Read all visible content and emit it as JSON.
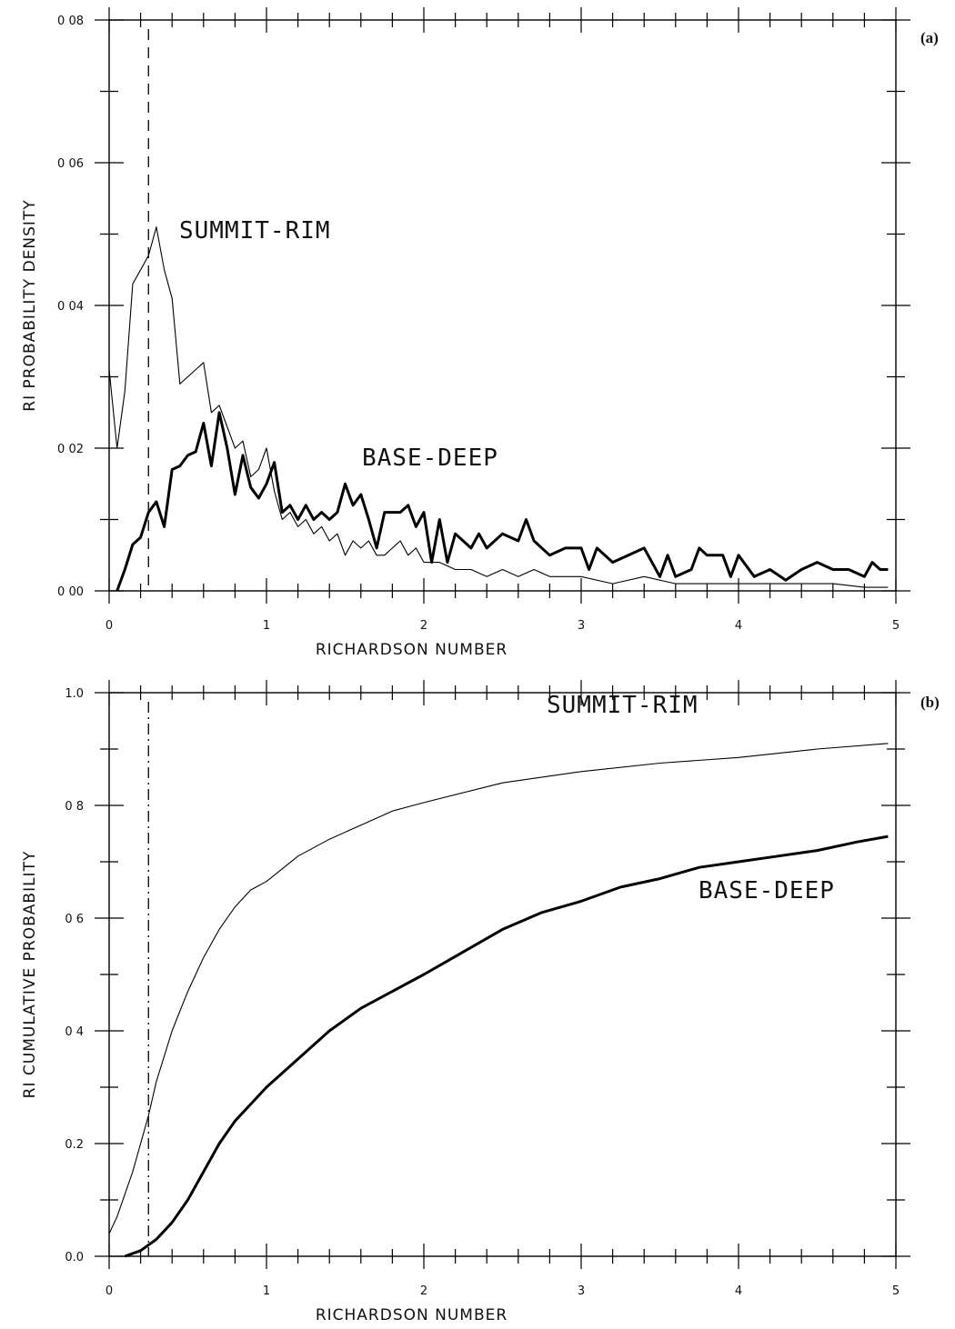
{
  "chart_data": [
    {
      "panel_label": "(a)",
      "type": "line",
      "xlabel": "RICHARDSON NUMBER",
      "ylabel": "RI PROBABILITY DENSITY",
      "xlim": [
        0,
        5
      ],
      "ylim": [
        0,
        0.08
      ],
      "x_ticks": [
        "0",
        "1",
        "2",
        "3",
        "4",
        "5"
      ],
      "y_ticks": [
        "0 00",
        "0 02",
        "0 04",
        "0 06",
        "0 08"
      ],
      "threshold_x": 0.25,
      "series": [
        {
          "name": "SUMMIT-RIM",
          "values": [
            [
              0.0,
              0.031
            ],
            [
              0.05,
              0.02
            ],
            [
              0.1,
              0.028
            ],
            [
              0.15,
              0.043
            ],
            [
              0.2,
              0.045
            ],
            [
              0.25,
              0.047
            ],
            [
              0.3,
              0.051
            ],
            [
              0.35,
              0.045
            ],
            [
              0.4,
              0.041
            ],
            [
              0.45,
              0.029
            ],
            [
              0.5,
              0.03
            ],
            [
              0.55,
              0.031
            ],
            [
              0.6,
              0.032
            ],
            [
              0.65,
              0.025
            ],
            [
              0.7,
              0.026
            ],
            [
              0.75,
              0.023
            ],
            [
              0.8,
              0.02
            ],
            [
              0.85,
              0.021
            ],
            [
              0.9,
              0.016
            ],
            [
              0.95,
              0.017
            ],
            [
              1.0,
              0.02
            ],
            [
              1.05,
              0.014
            ],
            [
              1.1,
              0.01
            ],
            [
              1.15,
              0.011
            ],
            [
              1.2,
              0.009
            ],
            [
              1.25,
              0.01
            ],
            [
              1.3,
              0.008
            ],
            [
              1.35,
              0.009
            ],
            [
              1.4,
              0.007
            ],
            [
              1.45,
              0.008
            ],
            [
              1.5,
              0.005
            ],
            [
              1.55,
              0.007
            ],
            [
              1.6,
              0.006
            ],
            [
              1.65,
              0.007
            ],
            [
              1.7,
              0.005
            ],
            [
              1.75,
              0.005
            ],
            [
              1.8,
              0.006
            ],
            [
              1.85,
              0.007
            ],
            [
              1.9,
              0.005
            ],
            [
              1.95,
              0.006
            ],
            [
              2.0,
              0.004
            ],
            [
              2.1,
              0.004
            ],
            [
              2.2,
              0.003
            ],
            [
              2.3,
              0.003
            ],
            [
              2.4,
              0.002
            ],
            [
              2.5,
              0.003
            ],
            [
              2.6,
              0.002
            ],
            [
              2.7,
              0.003
            ],
            [
              2.8,
              0.002
            ],
            [
              2.9,
              0.002
            ],
            [
              3.0,
              0.002
            ],
            [
              3.2,
              0.001
            ],
            [
              3.4,
              0.002
            ],
            [
              3.6,
              0.001
            ],
            [
              3.8,
              0.001
            ],
            [
              4.0,
              0.001
            ],
            [
              4.2,
              0.001
            ],
            [
              4.4,
              0.001
            ],
            [
              4.6,
              0.001
            ],
            [
              4.8,
              0.0005
            ],
            [
              4.95,
              0.0005
            ]
          ]
        },
        {
          "name": "BASE-DEEP",
          "values": [
            [
              0.05,
              0.0
            ],
            [
              0.1,
              0.003
            ],
            [
              0.15,
              0.0065
            ],
            [
              0.2,
              0.0075
            ],
            [
              0.25,
              0.011
            ],
            [
              0.3,
              0.0125
            ],
            [
              0.35,
              0.009
            ],
            [
              0.4,
              0.017
            ],
            [
              0.45,
              0.0175
            ],
            [
              0.5,
              0.019
            ],
            [
              0.55,
              0.0195
            ],
            [
              0.6,
              0.0235
            ],
            [
              0.65,
              0.0175
            ],
            [
              0.7,
              0.025
            ],
            [
              0.75,
              0.02
            ],
            [
              0.8,
              0.0135
            ],
            [
              0.85,
              0.019
            ],
            [
              0.9,
              0.0145
            ],
            [
              0.95,
              0.013
            ],
            [
              1.0,
              0.015
            ],
            [
              1.05,
              0.018
            ],
            [
              1.1,
              0.011
            ],
            [
              1.15,
              0.012
            ],
            [
              1.2,
              0.01
            ],
            [
              1.25,
              0.012
            ],
            [
              1.3,
              0.01
            ],
            [
              1.35,
              0.011
            ],
            [
              1.4,
              0.01
            ],
            [
              1.45,
              0.011
            ],
            [
              1.5,
              0.015
            ],
            [
              1.55,
              0.012
            ],
            [
              1.6,
              0.0135
            ],
            [
              1.65,
              0.01
            ],
            [
              1.7,
              0.006
            ],
            [
              1.75,
              0.011
            ],
            [
              1.8,
              0.011
            ],
            [
              1.85,
              0.011
            ],
            [
              1.9,
              0.012
            ],
            [
              1.95,
              0.009
            ],
            [
              2.0,
              0.011
            ],
            [
              2.05,
              0.004
            ],
            [
              2.1,
              0.01
            ],
            [
              2.15,
              0.004
            ],
            [
              2.2,
              0.008
            ],
            [
              2.3,
              0.006
            ],
            [
              2.35,
              0.008
            ],
            [
              2.4,
              0.006
            ],
            [
              2.5,
              0.008
            ],
            [
              2.6,
              0.007
            ],
            [
              2.65,
              0.01
            ],
            [
              2.7,
              0.007
            ],
            [
              2.8,
              0.005
            ],
            [
              2.9,
              0.006
            ],
            [
              3.0,
              0.006
            ],
            [
              3.05,
              0.003
            ],
            [
              3.1,
              0.006
            ],
            [
              3.2,
              0.004
            ],
            [
              3.3,
              0.005
            ],
            [
              3.4,
              0.006
            ],
            [
              3.5,
              0.002
            ],
            [
              3.55,
              0.005
            ],
            [
              3.6,
              0.002
            ],
            [
              3.7,
              0.003
            ],
            [
              3.75,
              0.006
            ],
            [
              3.8,
              0.005
            ],
            [
              3.9,
              0.005
            ],
            [
              3.95,
              0.002
            ],
            [
              4.0,
              0.005
            ],
            [
              4.1,
              0.002
            ],
            [
              4.2,
              0.003
            ],
            [
              4.3,
              0.0015
            ],
            [
              4.4,
              0.003
            ],
            [
              4.5,
              0.004
            ],
            [
              4.6,
              0.003
            ],
            [
              4.7,
              0.003
            ],
            [
              4.8,
              0.002
            ],
            [
              4.85,
              0.004
            ],
            [
              4.9,
              0.003
            ],
            [
              4.95,
              0.003
            ]
          ]
        }
      ]
    },
    {
      "panel_label": "(b)",
      "type": "line",
      "xlabel": "RICHARDSON NUMBER",
      "ylabel": "RI CUMULATIVE PROBABILITY",
      "xlim": [
        0,
        5
      ],
      "ylim": [
        0,
        1.0
      ],
      "x_ticks": [
        "0",
        "1",
        "2",
        "3",
        "4",
        "5"
      ],
      "y_ticks": [
        "0.0",
        "0.2",
        "0 4",
        "0 6",
        "0 8",
        "1.0"
      ],
      "threshold_x": 0.25,
      "series": [
        {
          "name": "SUMMIT-RIM",
          "values": [
            [
              0.0,
              0.04
            ],
            [
              0.05,
              0.07
            ],
            [
              0.1,
              0.11
            ],
            [
              0.15,
              0.15
            ],
            [
              0.2,
              0.2
            ],
            [
              0.25,
              0.25
            ],
            [
              0.3,
              0.31
            ],
            [
              0.4,
              0.4
            ],
            [
              0.5,
              0.47
            ],
            [
              0.6,
              0.53
            ],
            [
              0.7,
              0.58
            ],
            [
              0.8,
              0.62
            ],
            [
              0.9,
              0.65
            ],
            [
              1.0,
              0.665
            ],
            [
              1.2,
              0.71
            ],
            [
              1.4,
              0.74
            ],
            [
              1.6,
              0.765
            ],
            [
              1.8,
              0.79
            ],
            [
              2.0,
              0.805
            ],
            [
              2.5,
              0.84
            ],
            [
              3.0,
              0.86
            ],
            [
              3.5,
              0.875
            ],
            [
              4.0,
              0.885
            ],
            [
              4.5,
              0.9
            ],
            [
              4.95,
              0.91
            ]
          ]
        },
        {
          "name": "BASE-DEEP",
          "values": [
            [
              0.1,
              0.0
            ],
            [
              0.2,
              0.01
            ],
            [
              0.3,
              0.03
            ],
            [
              0.4,
              0.06
            ],
            [
              0.5,
              0.1
            ],
            [
              0.6,
              0.15
            ],
            [
              0.7,
              0.2
            ],
            [
              0.8,
              0.24
            ],
            [
              0.9,
              0.27
            ],
            [
              1.0,
              0.3
            ],
            [
              1.2,
              0.35
            ],
            [
              1.4,
              0.4
            ],
            [
              1.6,
              0.44
            ],
            [
              1.8,
              0.47
            ],
            [
              2.0,
              0.5
            ],
            [
              2.25,
              0.54
            ],
            [
              2.5,
              0.58
            ],
            [
              2.75,
              0.61
            ],
            [
              3.0,
              0.63
            ],
            [
              3.25,
              0.655
            ],
            [
              3.5,
              0.67
            ],
            [
              3.75,
              0.69
            ],
            [
              4.0,
              0.7
            ],
            [
              4.25,
              0.71
            ],
            [
              4.5,
              0.72
            ],
            [
              4.75,
              0.735
            ],
            [
              4.95,
              0.745
            ]
          ]
        }
      ]
    }
  ],
  "annotations": {
    "panel_a": {
      "summit_label": "SUMMIT-RIM",
      "base_label": "BASE-DEEP"
    },
    "panel_b": {
      "summit_label": "SUMMIT-RIM",
      "base_label": "BASE-DEEP"
    }
  }
}
